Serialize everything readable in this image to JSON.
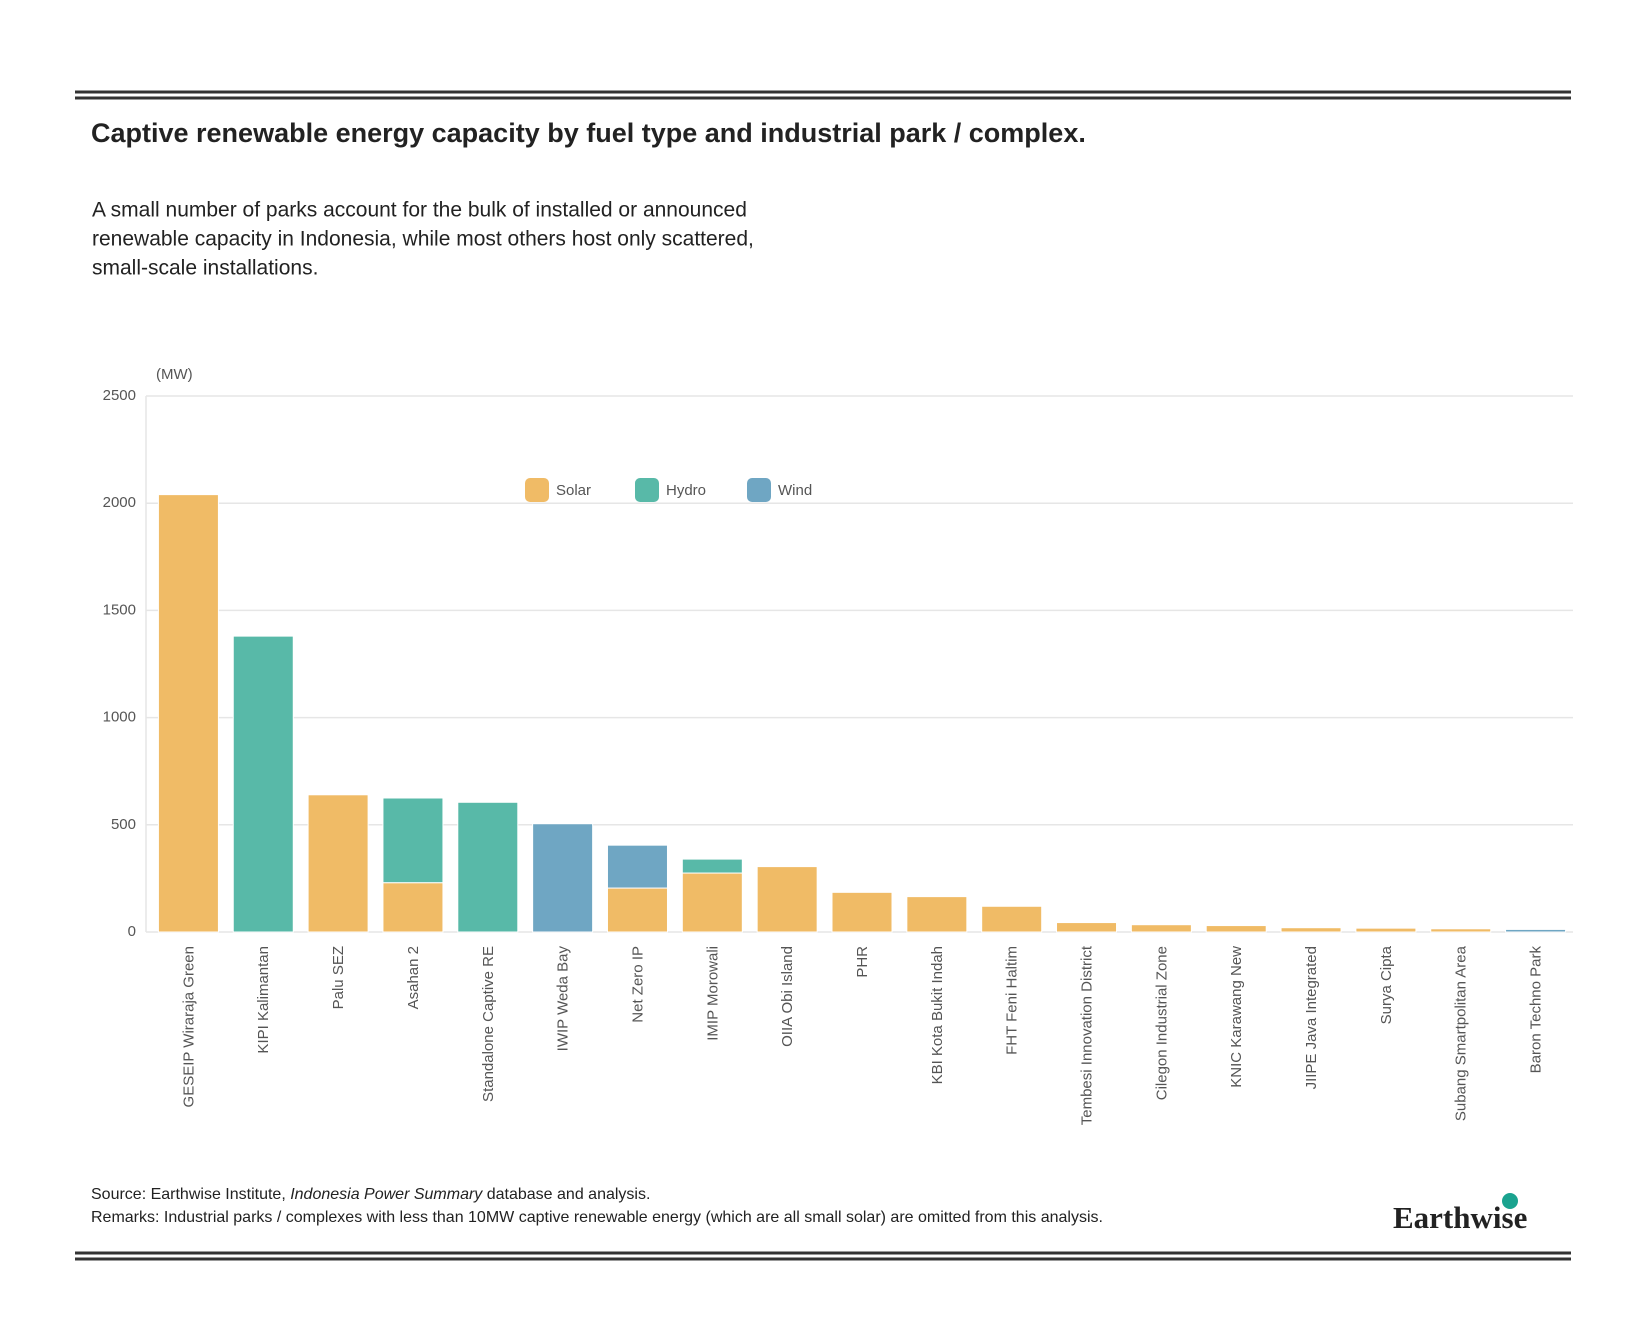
{
  "chart_data": {
    "type": "stacked_bar",
    "title": "Captive renewable energy capacity by fuel type and industrial park / complex.",
    "subtitle": [
      "A small number of parks account for the bulk of installed or announced",
      "renewable capacity in Indonesia, while most others host only scattered,",
      "small-scale installations."
    ],
    "y_label": "(MW)",
    "categories": [
      "GESEIP Wiraraja Green",
      "KIPI Kalimantan",
      "Palu SEZ",
      "Asahan 2",
      "Standalone Captive RE",
      "IWIP Weda Bay",
      "Net Zero IP",
      "IMIP Morowali",
      "OIIA Obi Island",
      "PHR",
      "KBI Kota Bukit Indah",
      "FHT Feni Haltim",
      "Tembesi Innovation District",
      "Cilegon Industrial Zone",
      "KNIC Karawang New",
      "JIIPE Java Integrated",
      "Surya Cipta",
      "Subang Smartpolitan Area",
      "Baron Techno Park"
    ],
    "series": [
      {
        "name": "Solar",
        "color": "#f0bb66",
        "values": [
          2040,
          null,
          640,
          230,
          null,
          null,
          205,
          275,
          305,
          185,
          165,
          120,
          44,
          34,
          30,
          20,
          18,
          15,
          null
        ]
      },
      {
        "name": "Hydro",
        "color": "#58b9a8",
        "values": [
          null,
          1380,
          null,
          395,
          605,
          null,
          null,
          65,
          null,
          null,
          null,
          null,
          null,
          null,
          null,
          null,
          null,
          null,
          null
        ]
      },
      {
        "name": "Wind",
        "color": "#6fa6c3",
        "values": [
          null,
          null,
          null,
          null,
          null,
          505,
          200,
          null,
          null,
          null,
          null,
          null,
          null,
          null,
          null,
          null,
          null,
          null,
          12
        ]
      }
    ],
    "ylim": [
      0,
      2500
    ],
    "yticks": [
      0,
      500,
      1000,
      1500,
      2000,
      2500
    ],
    "grid": true,
    "source": [
      "Source: Earthwise Institute, ",
      "Indonesia Power Summary",
      " database and analysis."
    ],
    "remarks": "Remarks: Industrial parks / complexes with less than 10MW captive renewable energy (which are all small solar) are omitted from this analysis.",
    "logo": "Earthwise"
  }
}
